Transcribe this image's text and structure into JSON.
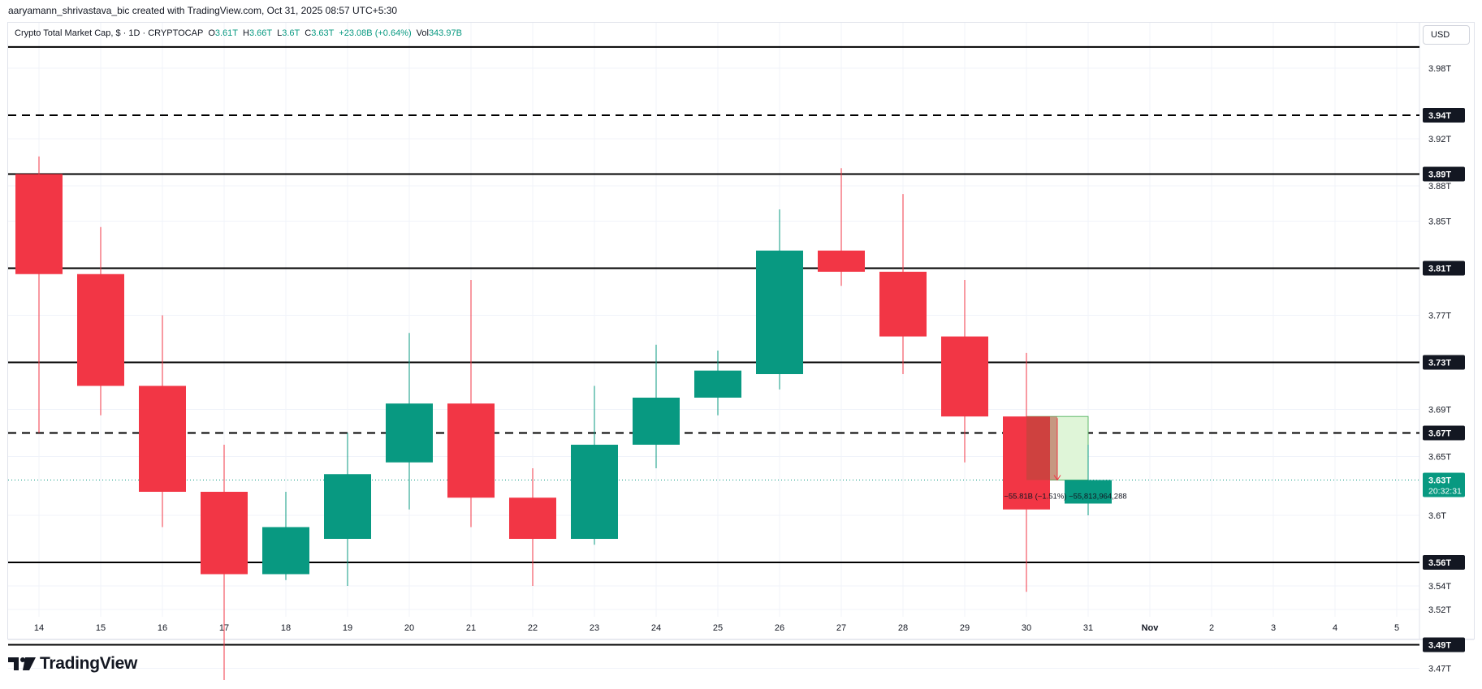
{
  "credit": "aaryamann_shrivastava_bic created with TradingView.com, Oct 31, 2025 08:57 UTC+5:30",
  "legend": {
    "symbol": "Crypto Total Market Cap, $ · 1D · CRYPTOCAP",
    "o_label": "O",
    "o_value": "3.61T",
    "h_label": "H",
    "h_value": "3.66T",
    "l_label": "L",
    "l_value": "3.6T",
    "c_label": "C",
    "c_value": "3.63T",
    "change": "+23.08B (+0.64%)",
    "vol_label": "Vol",
    "vol_value": "343.97B"
  },
  "currency": "USD",
  "logo_text": "TradingView",
  "colors": {
    "up": "#089981",
    "down": "#f23645",
    "level_line": "#000000",
    "grid": "#f0f3fa",
    "measure_fill": "#dff5d8",
    "measure_overlay": "#b04a3a"
  },
  "chart_data": {
    "type": "candlestick",
    "ylim": [
      3.44,
      4.02
    ],
    "x_ticks": [
      "14",
      "15",
      "16",
      "17",
      "18",
      "19",
      "20",
      "21",
      "22",
      "23",
      "24",
      "25",
      "26",
      "27",
      "28",
      "29",
      "30",
      "31",
      "Nov",
      "2",
      "3",
      "4",
      "5"
    ],
    "y_ticks": [
      "3.98T",
      "3.92T",
      "3.88T",
      "3.85T",
      "3.77T",
      "3.73T",
      "3.69T",
      "3.65T",
      "3.6T",
      "3.56T",
      "3.54T",
      "3.52T",
      "3.47T"
    ],
    "candles": [
      {
        "x": "14",
        "open": 3.89,
        "high": 3.905,
        "low": 3.67,
        "close": 3.805
      },
      {
        "x": "15",
        "open": 3.805,
        "high": 3.845,
        "low": 3.685,
        "close": 3.71
      },
      {
        "x": "16",
        "open": 3.71,
        "high": 3.77,
        "low": 3.59,
        "close": 3.62
      },
      {
        "x": "17",
        "open": 3.62,
        "high": 3.66,
        "low": 3.46,
        "close": 3.55
      },
      {
        "x": "18",
        "open": 3.55,
        "high": 3.62,
        "low": 3.545,
        "close": 3.59
      },
      {
        "x": "19",
        "open": 3.58,
        "high": 3.67,
        "low": 3.54,
        "close": 3.635
      },
      {
        "x": "20",
        "open": 3.645,
        "high": 3.755,
        "low": 3.605,
        "close": 3.695
      },
      {
        "x": "21",
        "open": 3.695,
        "high": 3.8,
        "low": 3.59,
        "close": 3.615
      },
      {
        "x": "22",
        "open": 3.615,
        "high": 3.64,
        "low": 3.54,
        "close": 3.58
      },
      {
        "x": "23",
        "open": 3.58,
        "high": 3.71,
        "low": 3.575,
        "close": 3.66
      },
      {
        "x": "24",
        "open": 3.66,
        "high": 3.745,
        "low": 3.64,
        "close": 3.7
      },
      {
        "x": "25",
        "open": 3.7,
        "high": 3.74,
        "low": 3.685,
        "close": 3.723
      },
      {
        "x": "26",
        "open": 3.72,
        "high": 3.86,
        "low": 3.707,
        "close": 3.825
      },
      {
        "x": "27",
        "open": 3.825,
        "high": 3.895,
        "low": 3.795,
        "close": 3.807
      },
      {
        "x": "28",
        "open": 3.807,
        "high": 3.873,
        "low": 3.72,
        "close": 3.752
      },
      {
        "x": "29",
        "open": 3.752,
        "high": 3.8,
        "low": 3.645,
        "close": 3.684
      },
      {
        "x": "30",
        "open": 3.684,
        "high": 3.738,
        "low": 3.535,
        "close": 3.605
      },
      {
        "x": "31",
        "open": 3.61,
        "high": 3.66,
        "low": 3.6,
        "close": 3.63
      }
    ],
    "levels": [
      {
        "value": 3.998,
        "label": "",
        "style": "solid"
      },
      {
        "value": 3.94,
        "label": "3.94T",
        "style": "dashed"
      },
      {
        "value": 3.89,
        "label": "3.89T",
        "style": "solid"
      },
      {
        "value": 3.81,
        "label": "3.81T",
        "style": "solid"
      },
      {
        "value": 3.73,
        "label": "3.73T",
        "style": "solid"
      },
      {
        "value": 3.67,
        "label": "3.67T",
        "style": "dashed"
      },
      {
        "value": 3.56,
        "label": "3.56T",
        "style": "solid"
      },
      {
        "value": 3.49,
        "label": "3.49T",
        "style": "solid"
      }
    ],
    "current_price": {
      "value": 3.63,
      "label": "3.63T",
      "countdown": "20:32:31"
    },
    "measure": {
      "from_x": "30",
      "to_x": "31",
      "from_value": 3.684,
      "to_value": 3.63,
      "label": "−55.81B (−1.51%) −55,813,964,288"
    }
  }
}
